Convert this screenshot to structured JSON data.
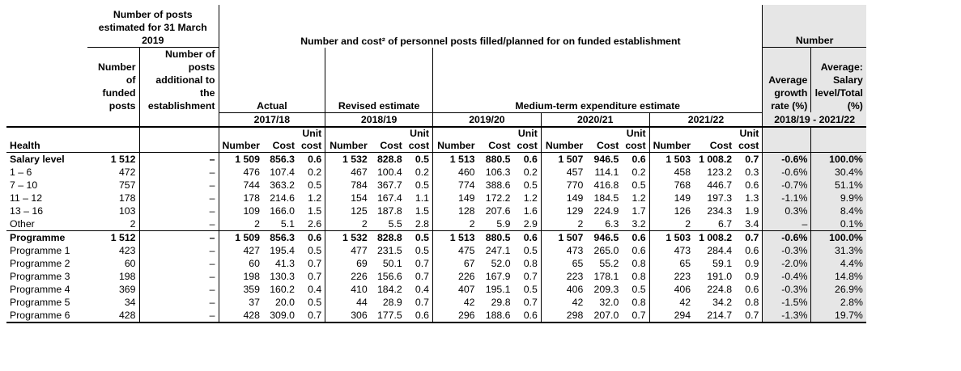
{
  "header": {
    "posts_estimated": "Number of posts estimated for 31 March 2019",
    "personnel_title": "Number and cost² of personnel posts filled/planned for on funded establishment",
    "number": "Number",
    "funded_posts": "Number of funded posts",
    "additional_posts": "Number of posts additional to the establishment",
    "actual": "Actual",
    "revised_estimate": "Revised estimate",
    "mtef": "Medium-term expenditure estimate",
    "avg_growth": "Average growth rate (%)",
    "avg_salary": "Average: Salary level/Total (%)",
    "years": [
      "2017/18",
      "2018/19",
      "2019/20",
      "2020/21",
      "2021/22"
    ],
    "period": "2018/19 - 2021/22",
    "department": "Health",
    "col_number": "Number",
    "col_cost": "Cost",
    "col_unit_cost": "Unit cost"
  },
  "rows": [
    {
      "label": "Salary level",
      "bold": true,
      "sep": true,
      "cells": [
        "1 512",
        "–",
        "1 509",
        "856.3",
        "0.6",
        "1 532",
        "828.8",
        "0.5",
        "1 513",
        "880.5",
        "0.6",
        "1 507",
        "946.5",
        "0.6",
        "1 503",
        "1 008.2",
        "0.7",
        "-0.6%",
        "100.0%"
      ]
    },
    {
      "label": "1 – 6",
      "bold": false,
      "sep": false,
      "cells": [
        "472",
        "–",
        "476",
        "107.4",
        "0.2",
        "467",
        "100.4",
        "0.2",
        "460",
        "106.3",
        "0.2",
        "457",
        "114.1",
        "0.2",
        "458",
        "123.2",
        "0.3",
        "-0.6%",
        "30.4%"
      ]
    },
    {
      "label": "7 – 10",
      "bold": false,
      "sep": false,
      "cells": [
        "757",
        "–",
        "744",
        "363.2",
        "0.5",
        "784",
        "367.7",
        "0.5",
        "774",
        "388.6",
        "0.5",
        "770",
        "416.8",
        "0.5",
        "768",
        "446.7",
        "0.6",
        "-0.7%",
        "51.1%"
      ]
    },
    {
      "label": "11 – 12",
      "bold": false,
      "sep": false,
      "cells": [
        "178",
        "–",
        "178",
        "214.6",
        "1.2",
        "154",
        "167.4",
        "1.1",
        "149",
        "172.2",
        "1.2",
        "149",
        "184.5",
        "1.2",
        "149",
        "197.3",
        "1.3",
        "-1.1%",
        "9.9%"
      ]
    },
    {
      "label": "13 – 16",
      "bold": false,
      "sep": false,
      "cells": [
        "103",
        "–",
        "109",
        "166.0",
        "1.5",
        "125",
        "187.8",
        "1.5",
        "128",
        "207.6",
        "1.6",
        "129",
        "224.9",
        "1.7",
        "126",
        "234.3",
        "1.9",
        "0.3%",
        "8.4%"
      ]
    },
    {
      "label": "Other",
      "bold": false,
      "sep": false,
      "cells": [
        "2",
        "–",
        "2",
        "5.1",
        "2.6",
        "2",
        "5.5",
        "2.8",
        "2",
        "5.9",
        "2.9",
        "2",
        "6.3",
        "3.2",
        "2",
        "6.7",
        "3.4",
        "–",
        "0.1%"
      ]
    },
    {
      "label": "Programme",
      "bold": true,
      "sep": true,
      "cells": [
        "1 512",
        "–",
        "1 509",
        "856.3",
        "0.6",
        "1 532",
        "828.8",
        "0.5",
        "1 513",
        "880.5",
        "0.6",
        "1 507",
        "946.5",
        "0.6",
        "1 503",
        "1 008.2",
        "0.7",
        "-0.6%",
        "100.0%"
      ]
    },
    {
      "label": "Programme 1",
      "bold": false,
      "sep": false,
      "cells": [
        "423",
        "–",
        "427",
        "195.4",
        "0.5",
        "477",
        "231.5",
        "0.5",
        "475",
        "247.1",
        "0.5",
        "473",
        "265.0",
        "0.6",
        "473",
        "284.4",
        "0.6",
        "-0.3%",
        "31.3%"
      ]
    },
    {
      "label": "Programme 2",
      "bold": false,
      "sep": false,
      "cells": [
        "60",
        "–",
        "60",
        "41.3",
        "0.7",
        "69",
        "50.1",
        "0.7",
        "67",
        "52.0",
        "0.8",
        "65",
        "55.2",
        "0.8",
        "65",
        "59.1",
        "0.9",
        "-2.0%",
        "4.4%"
      ]
    },
    {
      "label": "Programme 3",
      "bold": false,
      "sep": false,
      "cells": [
        "198",
        "–",
        "198",
        "130.3",
        "0.7",
        "226",
        "156.6",
        "0.7",
        "226",
        "167.9",
        "0.7",
        "223",
        "178.1",
        "0.8",
        "223",
        "191.0",
        "0.9",
        "-0.4%",
        "14.8%"
      ]
    },
    {
      "label": "Programme 4",
      "bold": false,
      "sep": false,
      "cells": [
        "369",
        "–",
        "359",
        "160.2",
        "0.4",
        "410",
        "184.2",
        "0.4",
        "407",
        "195.1",
        "0.5",
        "406",
        "209.3",
        "0.5",
        "406",
        "224.8",
        "0.6",
        "-0.3%",
        "26.9%"
      ]
    },
    {
      "label": "Programme 5",
      "bold": false,
      "sep": false,
      "cells": [
        "34",
        "–",
        "37",
        "20.0",
        "0.5",
        "44",
        "28.9",
        "0.7",
        "42",
        "29.8",
        "0.7",
        "42",
        "32.0",
        "0.8",
        "42",
        "34.2",
        "0.8",
        "-1.5%",
        "2.8%"
      ]
    },
    {
      "label": "Programme 6",
      "bold": false,
      "sep": false,
      "cells": [
        "428",
        "–",
        "428",
        "309.0",
        "0.7",
        "306",
        "177.5",
        "0.6",
        "296",
        "188.6",
        "0.6",
        "298",
        "207.0",
        "0.7",
        "294",
        "214.7",
        "0.7",
        "-1.3%",
        "19.7%"
      ]
    }
  ]
}
